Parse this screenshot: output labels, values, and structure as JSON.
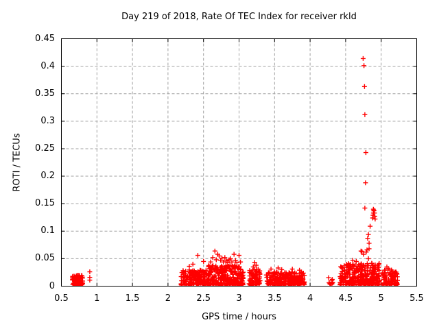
{
  "window": {
    "background": "#ffffff"
  },
  "colors": {
    "axis": "#000000",
    "grid": "#a0a0a0",
    "marker": "#ff0000",
    "text": "#000000"
  },
  "chart_data": {
    "type": "scatter",
    "title": "Day 219 of 2018, Rate Of TEC Index for receiver rkld",
    "xlabel": "GPS time / hours",
    "ylabel": "ROTI / TECUs",
    "xlim": [
      0.5,
      5.5
    ],
    "ylim": [
      0,
      0.45
    ],
    "xticks": [
      0.5,
      1,
      1.5,
      2,
      2.5,
      3,
      3.5,
      4,
      4.5,
      5,
      5.5
    ],
    "yticks": [
      0,
      0.05,
      0.1,
      0.15,
      0.2,
      0.25,
      0.3,
      0.35,
      0.4,
      0.45
    ],
    "grid": true,
    "legend": "none",
    "marker": {
      "shape": "plus",
      "color": "#ff0000",
      "size": 7
    },
    "series_name": "ROTI",
    "points": [
      [
        0.9,
        0.026
      ],
      [
        0.9,
        0.016
      ],
      [
        0.9,
        0.011
      ],
      [
        2.3,
        0.036
      ],
      [
        2.35,
        0.04
      ],
      [
        2.42,
        0.056
      ],
      [
        2.5,
        0.045
      ],
      [
        2.6,
        0.044
      ],
      [
        2.63,
        0.052
      ],
      [
        2.66,
        0.064
      ],
      [
        2.68,
        0.048
      ],
      [
        2.7,
        0.058
      ],
      [
        2.72,
        0.055
      ],
      [
        2.74,
        0.047
      ],
      [
        2.76,
        0.051
      ],
      [
        2.78,
        0.044
      ],
      [
        2.8,
        0.052
      ],
      [
        2.82,
        0.046
      ],
      [
        2.84,
        0.043
      ],
      [
        2.86,
        0.048
      ],
      [
        2.88,
        0.05
      ],
      [
        2.9,
        0.044
      ],
      [
        2.93,
        0.058
      ],
      [
        2.95,
        0.047
      ],
      [
        2.97,
        0.043
      ],
      [
        3.0,
        0.056
      ],
      [
        3.02,
        0.044
      ],
      [
        3.2,
        0.035
      ],
      [
        3.22,
        0.043
      ],
      [
        3.24,
        0.038
      ],
      [
        3.45,
        0.031
      ],
      [
        3.55,
        0.033
      ],
      [
        3.6,
        0.03
      ],
      [
        3.75,
        0.031
      ],
      [
        3.85,
        0.029
      ],
      [
        4.52,
        0.037
      ],
      [
        4.54,
        0.041
      ],
      [
        4.6,
        0.047
      ],
      [
        4.65,
        0.045
      ],
      [
        4.716,
        0.064
      ],
      [
        4.73,
        0.063
      ],
      [
        4.75,
        0.058
      ],
      [
        4.79,
        0.062
      ],
      [
        4.8,
        0.066
      ],
      [
        4.82,
        0.05
      ],
      [
        4.83,
        0.068
      ],
      [
        4.83,
        0.078
      ],
      [
        4.81,
        0.087
      ],
      [
        4.82,
        0.094
      ],
      [
        4.845,
        0.109
      ],
      [
        4.77,
        0.142
      ],
      [
        4.88,
        0.124
      ],
      [
        4.885,
        0.129
      ],
      [
        4.89,
        0.133
      ],
      [
        4.89,
        0.14
      ],
      [
        4.895,
        0.137
      ],
      [
        4.9,
        0.138
      ],
      [
        4.905,
        0.133
      ],
      [
        4.91,
        0.127
      ],
      [
        4.915,
        0.122
      ],
      [
        4.78,
        0.188
      ],
      [
        4.785,
        0.243
      ],
      [
        4.77,
        0.312
      ],
      [
        4.765,
        0.363
      ],
      [
        4.758,
        0.401
      ],
      [
        4.746,
        0.414
      ],
      [
        5.08,
        0.035
      ],
      [
        5.1,
        0.032
      ]
    ],
    "clusters": [
      {
        "x": [
          0.655,
          0.8
        ],
        "y": [
          0.002,
          0.02
        ],
        "n": 90
      },
      {
        "x": [
          2.18,
          2.56
        ],
        "y": [
          0.002,
          0.03
        ],
        "n": 170
      },
      {
        "x": [
          2.56,
          3.06
        ],
        "y": [
          0.002,
          0.038
        ],
        "n": 260
      },
      {
        "x": [
          3.14,
          3.3
        ],
        "y": [
          0.002,
          0.032
        ],
        "n": 70
      },
      {
        "x": [
          3.38,
          3.92
        ],
        "y": [
          0.002,
          0.026
        ],
        "n": 230
      },
      {
        "x": [
          4.26,
          4.32
        ],
        "y": [
          0.003,
          0.016
        ],
        "n": 12
      },
      {
        "x": [
          4.42,
          4.98
        ],
        "y": [
          0.002,
          0.042
        ],
        "n": 300
      },
      {
        "x": [
          5.02,
          5.23
        ],
        "y": [
          0.002,
          0.03
        ],
        "n": 90
      }
    ]
  }
}
